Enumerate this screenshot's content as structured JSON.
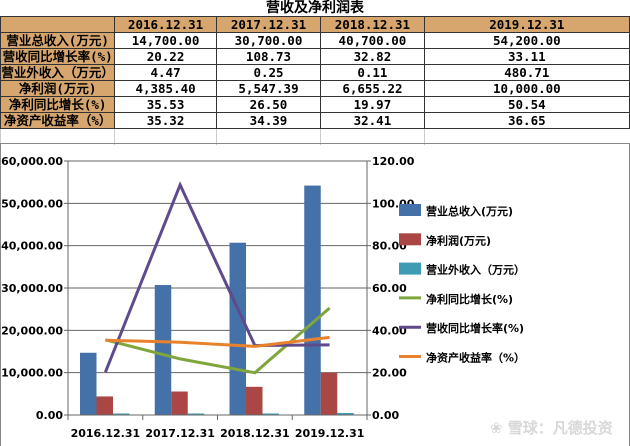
{
  "chart_data": {
    "type": "bar",
    "title": "营收及净利润表",
    "table": {
      "headers": [
        "",
        "2016.12.31",
        "2017.12.31",
        "2018.12.31",
        "2019.12.31"
      ],
      "rows": [
        [
          "营业总收入(万元)",
          "14,700.00",
          "30,700.00",
          "40,700.00",
          "54,200.00"
        ],
        [
          "营收同比增长率(%)",
          "20.22",
          "108.73",
          "32.82",
          "33.11"
        ],
        [
          "营业外收入（万元）",
          "4.47",
          "0.25",
          "0.11",
          "480.71"
        ],
        [
          "净利润(万元)",
          "4,385.40",
          "5,547.39",
          "6,655.22",
          "10,000.00"
        ],
        [
          "净利同比增长(%)",
          "35.53",
          "26.50",
          "19.97",
          "50.54"
        ],
        [
          "净资产收益率（%）",
          "35.32",
          "34.39",
          "32.41",
          "36.65"
        ]
      ]
    },
    "categories": [
      "2016.12.31",
      "2017.12.31",
      "2018.12.31",
      "2019.12.31"
    ],
    "left_axis": {
      "ylim": [
        0,
        60000
      ],
      "ticks": [
        "0.00",
        "10,000.00",
        "20,000.00",
        "30,000.00",
        "40,000.00",
        "50,000.00",
        "60,000.00"
      ]
    },
    "right_axis": {
      "ylim": [
        0,
        120
      ],
      "ticks": [
        "0.00",
        "20.00",
        "40.00",
        "60.00",
        "80.00",
        "100.00",
        "120.00"
      ]
    },
    "grid": true,
    "legend_position": "right",
    "series": [
      {
        "name": "营业总收入(万元)",
        "kind": "bar",
        "axis": "left",
        "color": "#4472a8",
        "values": [
          14700,
          30700,
          40700,
          54200
        ]
      },
      {
        "name": "净利润(万元)",
        "kind": "bar",
        "axis": "left",
        "color": "#aa4643",
        "values": [
          4385.4,
          5547.39,
          6655.22,
          10000
        ]
      },
      {
        "name": "营业外收入（万元）",
        "kind": "bar",
        "axis": "left",
        "color": "#3d9cb4",
        "values": [
          4.47,
          0.25,
          0.11,
          480.71
        ]
      },
      {
        "name": "净利同比增长(%)",
        "kind": "line",
        "axis": "right",
        "color": "#7fa63c",
        "values": [
          35.53,
          26.5,
          19.97,
          50.54
        ]
      },
      {
        "name": "营收同比增长率(%)",
        "kind": "line",
        "axis": "right",
        "color": "#5f4a8b",
        "values": [
          20.22,
          108.73,
          32.82,
          33.11
        ]
      },
      {
        "name": "净资产收益率（%）",
        "kind": "line",
        "axis": "right",
        "color": "#e8822c",
        "values": [
          35.32,
          34.39,
          32.41,
          36.65
        ]
      }
    ],
    "watermark": "雪球：凡德投资"
  }
}
